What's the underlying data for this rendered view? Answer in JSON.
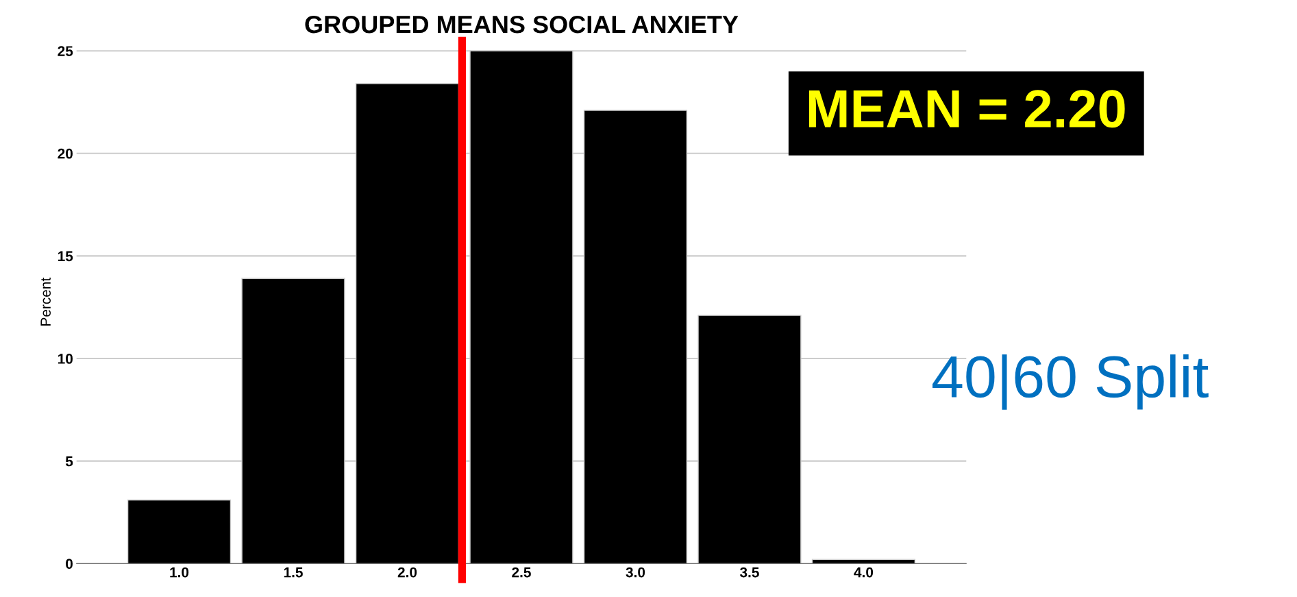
{
  "chart_data": {
    "type": "bar",
    "title": "GROUPED MEANS SOCIAL ANXIETY",
    "ylabel": "Percent",
    "x": [
      1.0,
      1.5,
      2.0,
      2.5,
      3.0,
      3.5,
      4.0
    ],
    "values": [
      3.1,
      13.9,
      23.4,
      25.0,
      22.1,
      12.1,
      0.2
    ],
    "color": "#000000",
    "xlim": [
      0.55,
      4.45
    ],
    "xticks": [
      {
        "value": 1.0,
        "label": "1.0"
      },
      {
        "value": 1.5,
        "label": "1.5"
      },
      {
        "value": 2.0,
        "label": "2.0"
      },
      {
        "value": 2.5,
        "label": "2.5"
      },
      {
        "value": 3.0,
        "label": "3.0"
      },
      {
        "value": 3.5,
        "label": "3.5"
      },
      {
        "value": 4.0,
        "label": "4.0"
      }
    ],
    "ylim": [
      0,
      25.5
    ],
    "yticks": [
      0,
      5,
      10,
      15,
      20,
      25
    ],
    "grid": "y",
    "ref_lines": [
      {
        "axis": "x",
        "value": 2.24,
        "color": "#ff0000"
      }
    ],
    "annotations": [
      "MEAN = 2.20",
      "40|60 Split"
    ]
  }
}
